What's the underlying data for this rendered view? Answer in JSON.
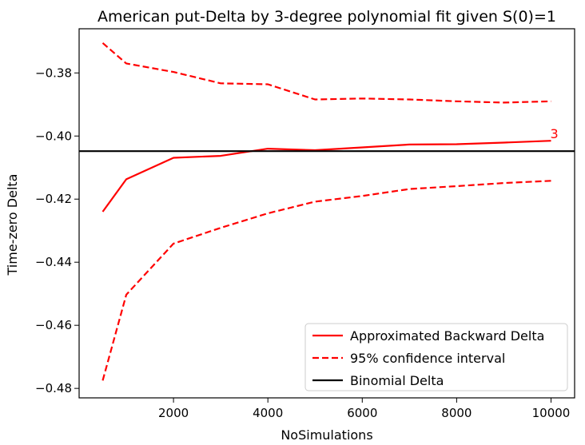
{
  "chart_data": {
    "type": "line",
    "title": "American put-Delta by 3-degree polynomial fit given S(0)=1",
    "xlabel": "NoSimulations",
    "ylabel": "Time-zero Delta",
    "xlim": [
      0,
      10500
    ],
    "ylim": [
      -0.483,
      -0.366
    ],
    "xticks": [
      2000,
      4000,
      6000,
      8000,
      10000
    ],
    "xtick_labels": [
      "2000",
      "4000",
      "6000",
      "8000",
      "10000"
    ],
    "yticks": [
      -0.38,
      -0.4,
      -0.42,
      -0.44,
      -0.46,
      -0.48
    ],
    "ytick_labels": [
      "−0.38",
      "−0.40",
      "−0.42",
      "−0.44",
      "−0.46",
      "−0.48"
    ],
    "grid": false,
    "legend_position": "lower-right",
    "annotation": {
      "text": "3",
      "x": 10000,
      "y": -0.4015,
      "color": "#ff0000"
    },
    "series": [
      {
        "name": "Approximated Backward Delta",
        "style": "solid",
        "color": "#ff0000",
        "x": [
          500,
          1000,
          2000,
          3000,
          4000,
          5000,
          6000,
          7000,
          8000,
          9000,
          10000
        ],
        "values": [
          -0.424,
          -0.4137,
          -0.4069,
          -0.4063,
          -0.404,
          -0.4045,
          -0.4036,
          -0.4027,
          -0.4026,
          -0.4021,
          -0.4015
        ]
      },
      {
        "name": "95% confidence interval",
        "style": "dashed",
        "color": "#ff0000",
        "x": [
          500,
          1000,
          2000,
          3000,
          4000,
          5000,
          6000,
          7000,
          8000,
          9000,
          10000
        ],
        "values": [
          -0.3705,
          -0.377,
          -0.3797,
          -0.3833,
          -0.3836,
          -0.3884,
          -0.3881,
          -0.3884,
          -0.389,
          -0.3894,
          -0.389
        ]
      },
      {
        "name": "95% confidence interval (lower)",
        "legend": false,
        "style": "dashed",
        "color": "#ff0000",
        "x": [
          500,
          1000,
          2000,
          3000,
          4000,
          5000,
          6000,
          7000,
          8000,
          9000,
          10000
        ],
        "values": [
          -0.4775,
          -0.4503,
          -0.4341,
          -0.4291,
          -0.4245,
          -0.4208,
          -0.419,
          -0.4168,
          -0.4159,
          -0.4149,
          -0.4142
        ]
      },
      {
        "name": "Binomial Delta",
        "style": "solid",
        "color": "#000000",
        "type": "hline",
        "values": [
          -0.4048
        ]
      }
    ],
    "legend_entries": [
      {
        "label": "Approximated Backward Delta",
        "style": "solid",
        "color": "#ff0000"
      },
      {
        "label": "95% confidence interval",
        "style": "dashed",
        "color": "#ff0000"
      },
      {
        "label": "Binomial Delta",
        "style": "solid",
        "color": "#000000"
      }
    ]
  }
}
